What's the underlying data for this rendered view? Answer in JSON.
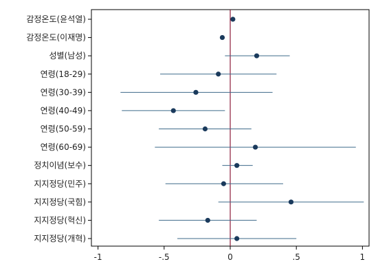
{
  "chart_data": {
    "type": "coefficient-plot",
    "orientation": "horizontal",
    "title": "",
    "xlabel": "",
    "ylabel": "",
    "xlim": [
      -1.05,
      1.05
    ],
    "x_ticks": [
      {
        "value": -1,
        "label": "-1"
      },
      {
        "value": -0.5,
        "label": "-.5"
      },
      {
        "value": 0,
        "label": "0"
      },
      {
        "value": 0.5,
        "label": ".5"
      },
      {
        "value": 1,
        "label": "1"
      }
    ],
    "reference_line": {
      "x": 0,
      "color": "#8b1a3a"
    },
    "grid": false,
    "legend": "none",
    "colors": {
      "point": "#1a3a5c",
      "interval": "#3e6a8a",
      "axis": "#000000"
    },
    "series": [
      {
        "categories": [
          "감정온도(윤석열)",
          "감정온도(이재명)",
          "성별(남성)",
          "연령(18-29)",
          "연령(30-39)",
          "연령(40-49)",
          "연령(50-59)",
          "연령(60-69)",
          "정치이념(보수)",
          "지지정당(민주)",
          "지지정당(국힘)",
          "지지정당(혁신)",
          "지지정당(개혁)"
        ],
        "estimate": [
          0.02,
          -0.06,
          0.2,
          -0.09,
          -0.26,
          -0.43,
          -0.19,
          0.19,
          0.05,
          -0.05,
          0.46,
          -0.17,
          0.05
        ],
        "lower": [
          0.01,
          -0.065,
          -0.04,
          -0.53,
          -0.83,
          -0.82,
          -0.54,
          -0.57,
          -0.06,
          -0.49,
          -0.09,
          -0.54,
          -0.4
        ],
        "upper": [
          0.03,
          -0.055,
          0.45,
          0.35,
          0.32,
          -0.04,
          0.16,
          0.95,
          0.17,
          0.4,
          1.01,
          0.2,
          0.5
        ]
      }
    ]
  }
}
